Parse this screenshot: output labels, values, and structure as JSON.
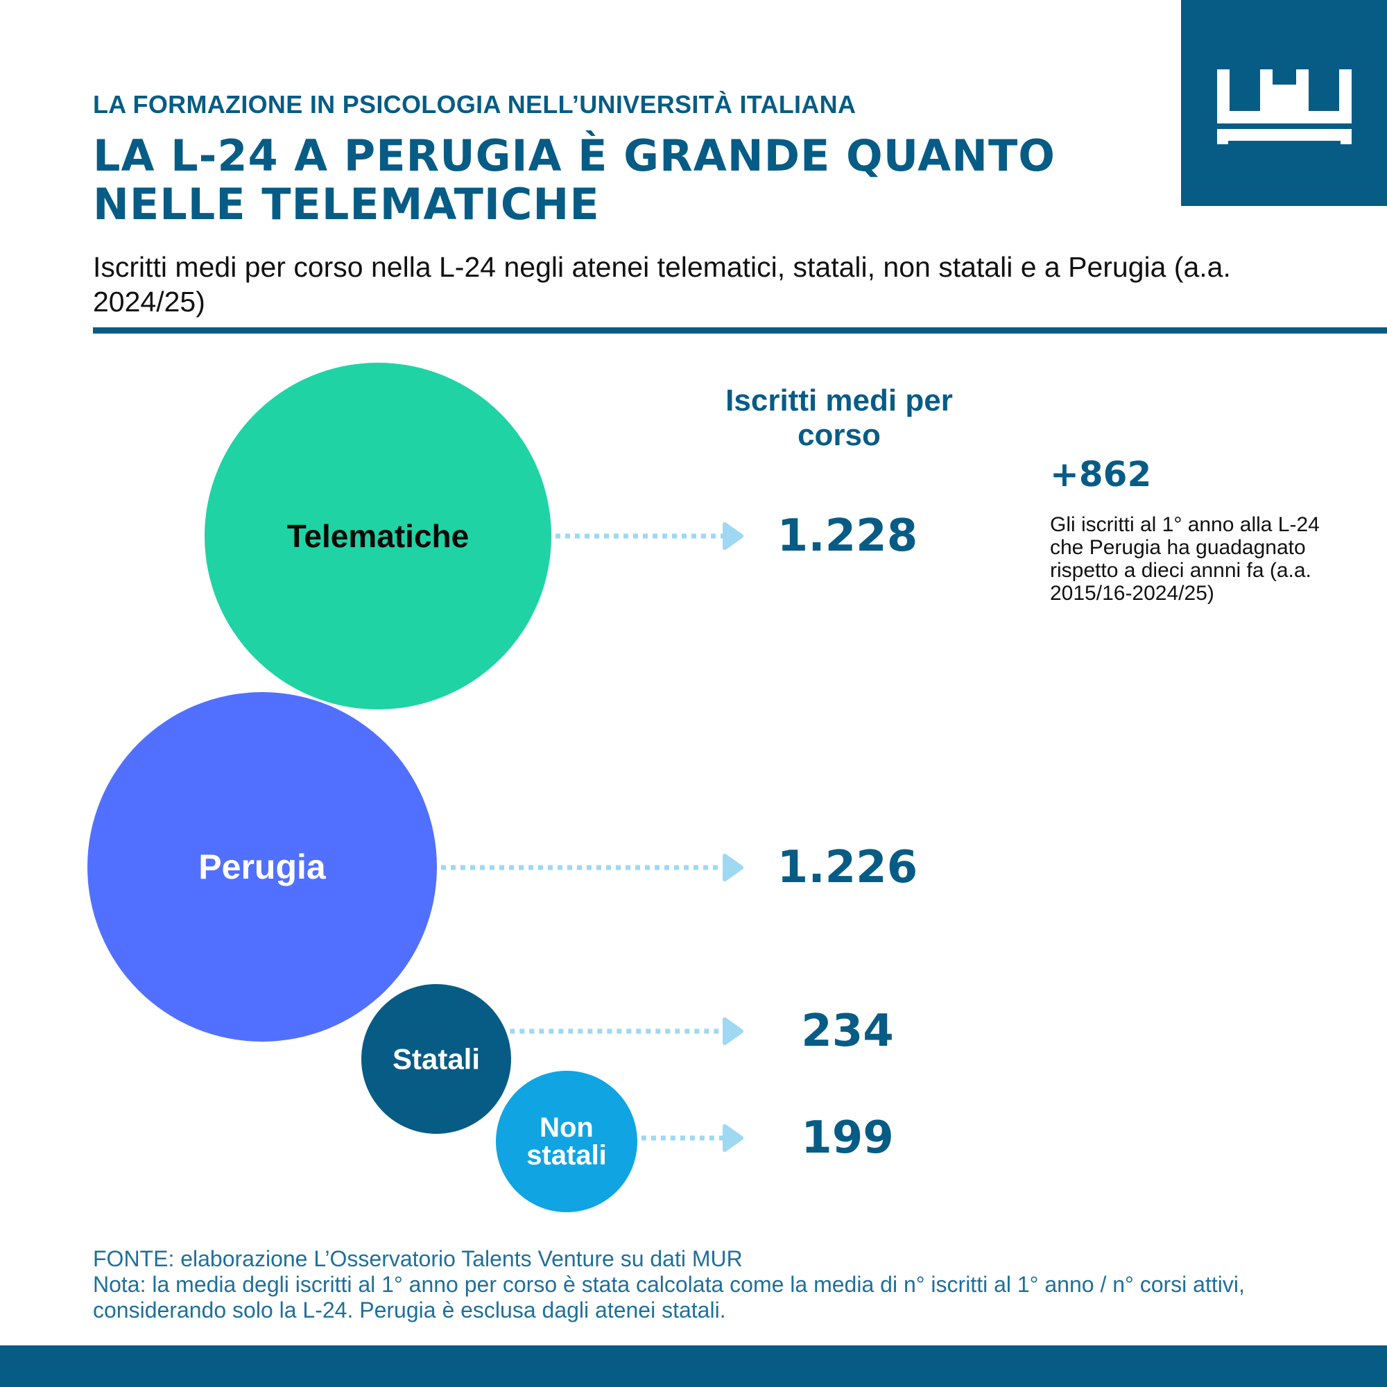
{
  "header": {
    "kicker": "LA FORMAZIONE IN PSICOLOGIA NELL’UNIVERSITÀ ITALIANA",
    "title": "LA L-24 A PERUGIA È GRANDE QUANTO NELLE TELEMATICHE",
    "subtitle": "Iscritti medi per corso nella L-24 negli atenei telematici, statali, non statali e a Perugia (a.a. 2024/25)"
  },
  "colors": {
    "brand": "#075c85",
    "arrow": "#9ed8f3"
  },
  "chart_data": {
    "type": "bubble",
    "value_header": "Iscritti medi per corso",
    "series": [
      {
        "name": "Telematiche",
        "value": 1228,
        "display_value": "1.228",
        "color": "#20d3a4",
        "text_color": "#0a0a0a"
      },
      {
        "name": "Perugia",
        "value": 1226,
        "display_value": "1.226",
        "color": "#5270ff",
        "text_color": "#ffffff"
      },
      {
        "name": "Statali",
        "value": 234,
        "display_value": "234",
        "color": "#075c85",
        "text_color": "#ffffff"
      },
      {
        "name": "Non statali",
        "value": 199,
        "display_value": "199",
        "color": "#10a5e2",
        "text_color": "#ffffff"
      }
    ]
  },
  "highlight": {
    "value": "+862",
    "text": "Gli iscritti al 1° anno alla L-24 che Perugia ha guadagnato rispetto a dieci annni fa (a.a. 2015/16-2024/25)"
  },
  "footer": {
    "source": "FONTE: elaborazione L’Osservatorio Talents Venture su dati MUR",
    "note": "Nota: la media degli iscritti al 1° anno per corso è stata calcolata come la media di n° iscritti al 1° anno / n° corsi attivi, considerando solo la L-24. Perugia è esclusa dagli atenei statali."
  },
  "logo": {
    "icon": "crown-logo-icon"
  }
}
